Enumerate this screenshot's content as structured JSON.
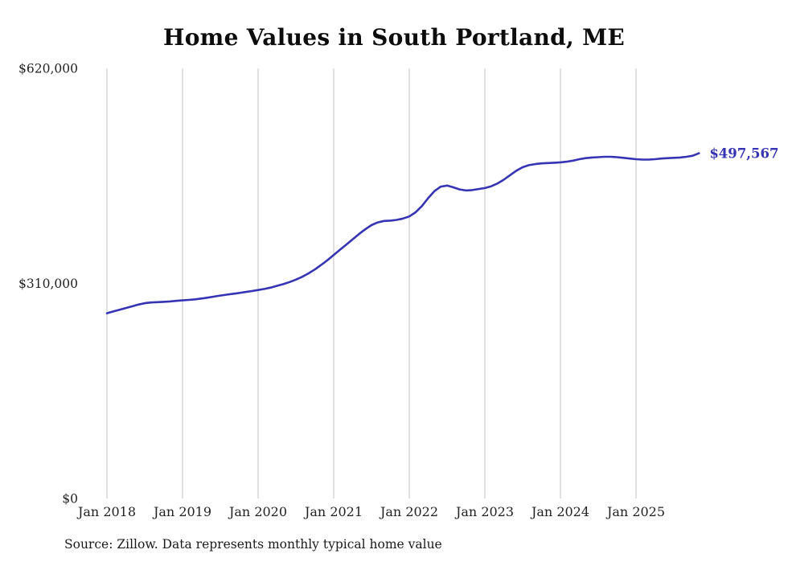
{
  "title": "Home Values in South Portland, ME",
  "source": "Source: Zillow. Data represents monthly typical home value",
  "colors": {
    "line": "#3634b2",
    "grid": "#cccccc",
    "text": "#222222",
    "title": "#0d0d0d"
  },
  "chart_data": {
    "type": "line",
    "title": "Home Values in South Portland, ME",
    "xlabel": "",
    "ylabel": "",
    "ylim": [
      0,
      620000
    ],
    "grid": "vertical-only",
    "legend": "none",
    "y_ticks": [
      {
        "label": "$0",
        "value": 0
      },
      {
        "label": "$310,000",
        "value": 310000
      },
      {
        "label": "$620,000",
        "value": 620000
      }
    ],
    "x_ticks": [
      "Jan 2018",
      "Jan 2019",
      "Jan 2020",
      "Jan 2021",
      "Jan 2022",
      "Jan 2023",
      "Jan 2024",
      "Jan 2025"
    ],
    "annotation": {
      "text": "$497,567",
      "value": 497567,
      "position": "line-end"
    },
    "x": [
      "2018-01",
      "2018-02",
      "2018-03",
      "2018-04",
      "2018-05",
      "2018-06",
      "2018-07",
      "2018-08",
      "2018-09",
      "2018-10",
      "2018-11",
      "2018-12",
      "2019-01",
      "2019-02",
      "2019-03",
      "2019-04",
      "2019-05",
      "2019-06",
      "2019-07",
      "2019-08",
      "2019-09",
      "2019-10",
      "2019-11",
      "2019-12",
      "2020-01",
      "2020-02",
      "2020-03",
      "2020-04",
      "2020-05",
      "2020-06",
      "2020-07",
      "2020-08",
      "2020-09",
      "2020-10",
      "2020-11",
      "2020-12",
      "2021-01",
      "2021-02",
      "2021-03",
      "2021-04",
      "2021-05",
      "2021-06",
      "2021-07",
      "2021-08",
      "2021-09",
      "2021-10",
      "2021-11",
      "2021-12",
      "2022-01",
      "2022-02",
      "2022-03",
      "2022-04",
      "2022-05",
      "2022-06",
      "2022-07",
      "2022-08",
      "2022-09",
      "2022-10",
      "2022-11",
      "2022-12",
      "2023-01",
      "2023-02",
      "2023-03",
      "2023-04",
      "2023-05",
      "2023-06",
      "2023-07",
      "2023-08",
      "2023-09",
      "2023-10",
      "2023-11",
      "2023-12",
      "2024-01",
      "2024-02",
      "2024-03",
      "2024-04",
      "2024-05",
      "2024-06",
      "2024-07",
      "2024-08",
      "2024-09",
      "2024-10",
      "2024-11",
      "2024-12",
      "2025-01",
      "2025-02",
      "2025-03",
      "2025-04",
      "2025-05",
      "2025-06",
      "2025-07",
      "2025-08",
      "2025-09",
      "2025-10",
      "2025-11"
    ],
    "values": [
      267000,
      269500,
      272000,
      274500,
      277000,
      279500,
      281500,
      282500,
      283000,
      283500,
      284000,
      284800,
      285500,
      286200,
      287000,
      288200,
      289500,
      291000,
      292500,
      293800,
      295000,
      296200,
      297600,
      299000,
      300500,
      302000,
      304000,
      306500,
      309000,
      312000,
      315500,
      319500,
      324500,
      330000,
      336500,
      343500,
      351000,
      358500,
      366000,
      373500,
      381000,
      388000,
      394000,
      398000,
      400000,
      400500,
      401500,
      403500,
      406500,
      412500,
      421500,
      433000,
      443000,
      449500,
      451000,
      448500,
      445500,
      444000,
      444500,
      446000,
      447500,
      450000,
      454000,
      459500,
      466000,
      472500,
      477500,
      480500,
      482000,
      483000,
      483500,
      484000,
      484500,
      485500,
      487000,
      489000,
      490500,
      491500,
      492000,
      492500,
      492500,
      492000,
      491000,
      490000,
      489000,
      488500,
      488500,
      489000,
      490000,
      490500,
      491000,
      491500,
      492500,
      494000,
      497567
    ]
  }
}
